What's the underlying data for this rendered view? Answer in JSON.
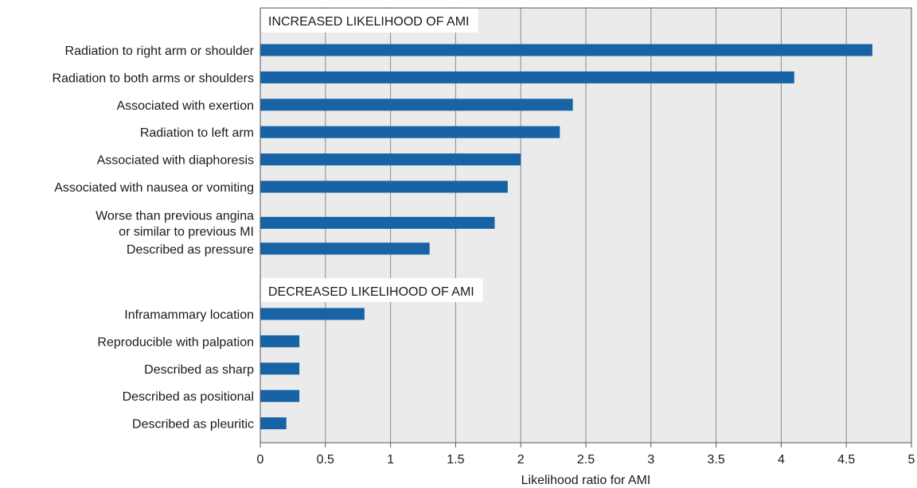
{
  "chart_data": {
    "type": "bar",
    "orientation": "horizontal",
    "title": "",
    "xlabel": "Likelihood ratio for AMI",
    "ylabel": "",
    "xlim": [
      0,
      5
    ],
    "xticks": [
      "0",
      "0.5",
      "1",
      "1.5",
      "2",
      "2.5",
      "3",
      "3.5",
      "4",
      "4.5",
      "5"
    ],
    "grid": "vertical",
    "bar_color": "#1763a6",
    "plot_background": "#ebebeb",
    "sections": [
      {
        "label": "INCREASED LIKELIHOOD OF AMI",
        "items": [
          {
            "label": [
              "Radiation to right arm or shoulder"
            ],
            "value": 4.7
          },
          {
            "label": [
              "Radiation to both arms or shoulders"
            ],
            "value": 4.1
          },
          {
            "label": [
              "Associated with exertion"
            ],
            "value": 2.4
          },
          {
            "label": [
              "Radiation to left arm"
            ],
            "value": 2.3
          },
          {
            "label": [
              "Associated with diaphoresis"
            ],
            "value": 2.0
          },
          {
            "label": [
              "Associated with nausea or vomiting"
            ],
            "value": 1.9
          },
          {
            "label": [
              "Worse than previous angina",
              "or similar to previous MI"
            ],
            "value": 1.8
          },
          {
            "label": [
              "Described as pressure"
            ],
            "value": 1.3
          }
        ]
      },
      {
        "label": "DECREASED LIKELIHOOD OF AMI",
        "items": [
          {
            "label": [
              "Inframammary location"
            ],
            "value": 0.8
          },
          {
            "label": [
              "Reproducible with palpation"
            ],
            "value": 0.3
          },
          {
            "label": [
              "Described as sharp"
            ],
            "value": 0.3
          },
          {
            "label": [
              "Described as positional"
            ],
            "value": 0.3
          },
          {
            "label": [
              "Described as pleuritic"
            ],
            "value": 0.2
          }
        ]
      }
    ]
  }
}
